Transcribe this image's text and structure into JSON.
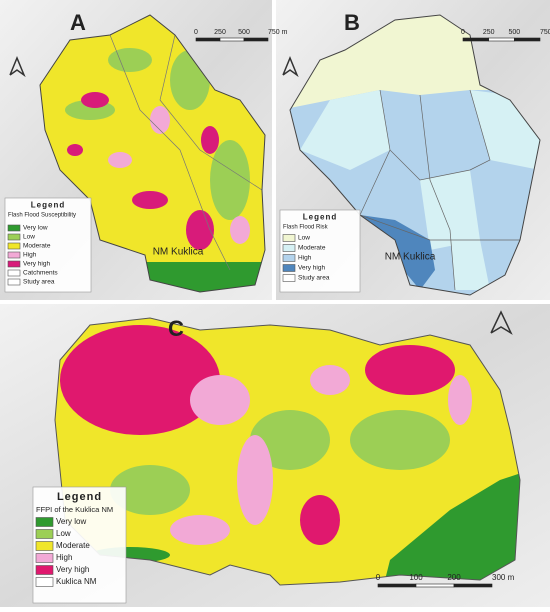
{
  "panels": [
    {
      "label": "A",
      "scale": [
        "0",
        "250",
        "500",
        "750 m"
      ],
      "place": "NM Kuklica",
      "legend": {
        "title": "Legend",
        "subtitle": "Flash Flood Susceptibility",
        "items": [
          {
            "label": "Very low",
            "color": "#2f9a2f"
          },
          {
            "label": "Low",
            "color": "#9ccf55"
          },
          {
            "label": "Moderate",
            "color": "#f0e62a"
          },
          {
            "label": "High",
            "color": "#f2a9d6"
          },
          {
            "label": "Very high",
            "color": "#d81b7a"
          },
          {
            "label": "Catchments",
            "color": "#ffffff"
          },
          {
            "label": "Study area",
            "color": "#ffffff"
          }
        ]
      }
    },
    {
      "label": "B",
      "scale": [
        "0",
        "250",
        "500",
        "750 m"
      ],
      "place": "NM Kuklica",
      "legend": {
        "title": "Legend",
        "subtitle": "Flash Flood Risk",
        "items": [
          {
            "label": "Low",
            "color": "#f1f6d2"
          },
          {
            "label": "Moderate",
            "color": "#d6f1f4"
          },
          {
            "label": "High",
            "color": "#b3d3ec"
          },
          {
            "label": "Very high",
            "color": "#4f86bd"
          },
          {
            "label": "Study area",
            "color": "#ffffff"
          }
        ]
      }
    },
    {
      "label": "C",
      "scale": [
        "0",
        "100",
        "200",
        "300 m"
      ],
      "legend": {
        "title": "Legend",
        "subtitle": "FFPI of the Kuklica NM",
        "items": [
          {
            "label": "Very low",
            "color": "#2f9a2f"
          },
          {
            "label": "Low",
            "color": "#9ccf55"
          },
          {
            "label": "Moderate",
            "color": "#f0e62a"
          },
          {
            "label": "High",
            "color": "#f2a9d6"
          },
          {
            "label": "Very high",
            "color": "#e0186e"
          },
          {
            "label": "Kuklica NM",
            "color": "#ffffff"
          }
        ]
      }
    }
  ]
}
